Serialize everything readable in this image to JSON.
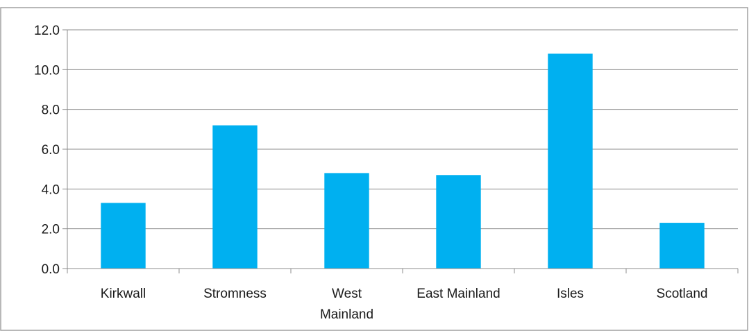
{
  "chart_data": {
    "type": "bar",
    "categories": [
      "Kirkwall",
      "Stromness",
      "West Mainland",
      "East Mainland",
      "Isles",
      "Scotland"
    ],
    "category_lines": [
      [
        "Kirkwall"
      ],
      [
        "Stromness"
      ],
      [
        "West",
        "Mainland"
      ],
      [
        "East Mainland"
      ],
      [
        "Isles"
      ],
      [
        "Scotland"
      ]
    ],
    "values": [
      3.3,
      7.2,
      4.8,
      4.7,
      10.8,
      2.3
    ],
    "title": "",
    "xlabel": "",
    "ylabel": "",
    "ylim": [
      0,
      12
    ],
    "yticks": [
      0,
      2,
      4,
      6,
      8,
      10,
      12
    ],
    "ytick_labels": [
      "0.0",
      "2.0",
      "4.0",
      "6.0",
      "8.0",
      "10.0",
      "12.0"
    ],
    "bar_color": "#00b0f0",
    "gridlines": true,
    "legend": "none"
  }
}
